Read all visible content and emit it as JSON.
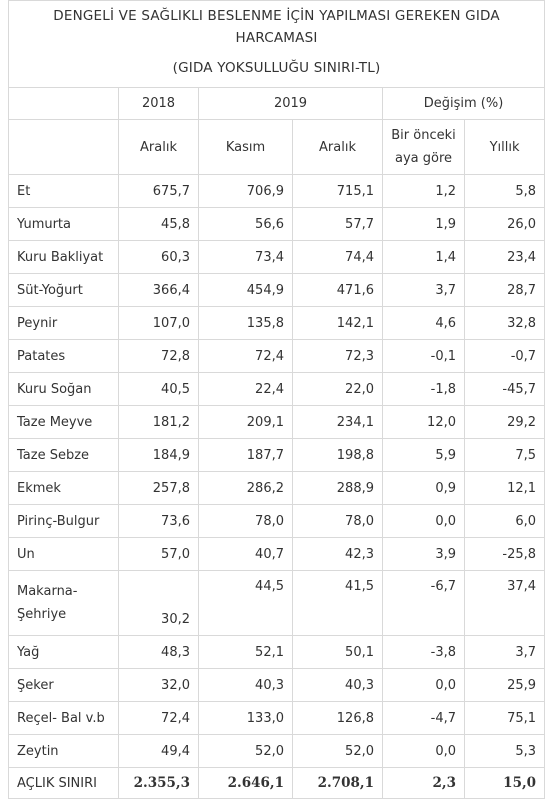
{
  "title": {
    "line1": "DENGELİ VE SAĞLIKLI BESLENME İÇİN YAPILMASI GEREKEN GIDA",
    "line2": "HARCAMASI",
    "line3": "(GIDA YOKSULLUĞU SINIRI-TL)"
  },
  "header": {
    "year1": "2018",
    "year2": "2019",
    "change": "Değişim (%)",
    "col1": "Aralık",
    "col2": "Kasım",
    "col3": "Aralık",
    "col4_line1": "Bir önceki",
    "col4_line2": "aya göre",
    "col5": "Yıllık"
  },
  "rows": [
    {
      "name": "Et",
      "c1": "675,7",
      "c2": "706,9",
      "c3": "715,1",
      "c4": "1,2",
      "c5": "5,8"
    },
    {
      "name": "Yumurta",
      "c1": "45,8",
      "c2": "56,6",
      "c3": "57,7",
      "c4": "1,9",
      "c5": "26,0"
    },
    {
      "name": "Kuru Bakliyat",
      "c1": "60,3",
      "c2": "73,4",
      "c3": "74,4",
      "c4": "1,4",
      "c5": "23,4"
    },
    {
      "name": "Süt-Yoğurt",
      "c1": "366,4",
      "c2": "454,9",
      "c3": "471,6",
      "c4": "3,7",
      "c5": "28,7"
    },
    {
      "name": "Peynir",
      "c1": "107,0",
      "c2": "135,8",
      "c3": "142,1",
      "c4": "4,6",
      "c5": "32,8"
    },
    {
      "name": "Patates",
      "c1": "72,8",
      "c2": "72,4",
      "c3": "72,3",
      "c4": "-0,1",
      "c5": "-0,7"
    },
    {
      "name": "Kuru Soğan",
      "c1": "40,5",
      "c2": "22,4",
      "c3": "22,0",
      "c4": "-1,8",
      "c5": "-45,7"
    },
    {
      "name": "Taze Meyve",
      "c1": "181,2",
      "c2": "209,1",
      "c3": "234,1",
      "c4": "12,0",
      "c5": "29,2"
    },
    {
      "name": "Taze Sebze",
      "c1": "184,9",
      "c2": "187,7",
      "c3": "198,8",
      "c4": "5,9",
      "c5": "7,5"
    },
    {
      "name": "Ekmek",
      "c1": "257,8",
      "c2": "286,2",
      "c3": "288,9",
      "c4": "0,9",
      "c5": "12,1"
    },
    {
      "name": "Pirinç-Bulgur",
      "c1": "73,6",
      "c2": "78,0",
      "c3": "78,0",
      "c4": "0,0",
      "c5": "6,0"
    },
    {
      "name": "Un",
      "c1": "57,0",
      "c2": "40,7",
      "c3": "42,3",
      "c4": "3,9",
      "c5": "-25,8"
    }
  ],
  "makarna": {
    "name_line1": "Makarna-",
    "name_line2": "Şehriye",
    "c1": "30,2",
    "c2": "44,5",
    "c3": "41,5",
    "c4": "-6,7",
    "c5": "37,4"
  },
  "rows2": [
    {
      "name": "Yağ",
      "c1": "48,3",
      "c2": "52,1",
      "c3": "50,1",
      "c4": "-3,8",
      "c5": "3,7"
    },
    {
      "name": "Şeker",
      "c1": "32,0",
      "c2": "40,3",
      "c3": "40,3",
      "c4": "0,0",
      "c5": "25,9"
    },
    {
      "name": "Reçel- Bal v.b",
      "c1": "72,4",
      "c2": "133,0",
      "c3": "126,8",
      "c4": "-4,7",
      "c5": "75,1"
    },
    {
      "name": "Zeytin",
      "c1": "49,4",
      "c2": "52,0",
      "c3": "52,0",
      "c4": "0,0",
      "c5": "5,3"
    }
  ],
  "total": {
    "name": "AÇLIK SINIRI",
    "c1": "2.355,3",
    "c2": "2.646,1",
    "c3": "2.708,1",
    "c4": "2,3",
    "c5": "15,0"
  }
}
